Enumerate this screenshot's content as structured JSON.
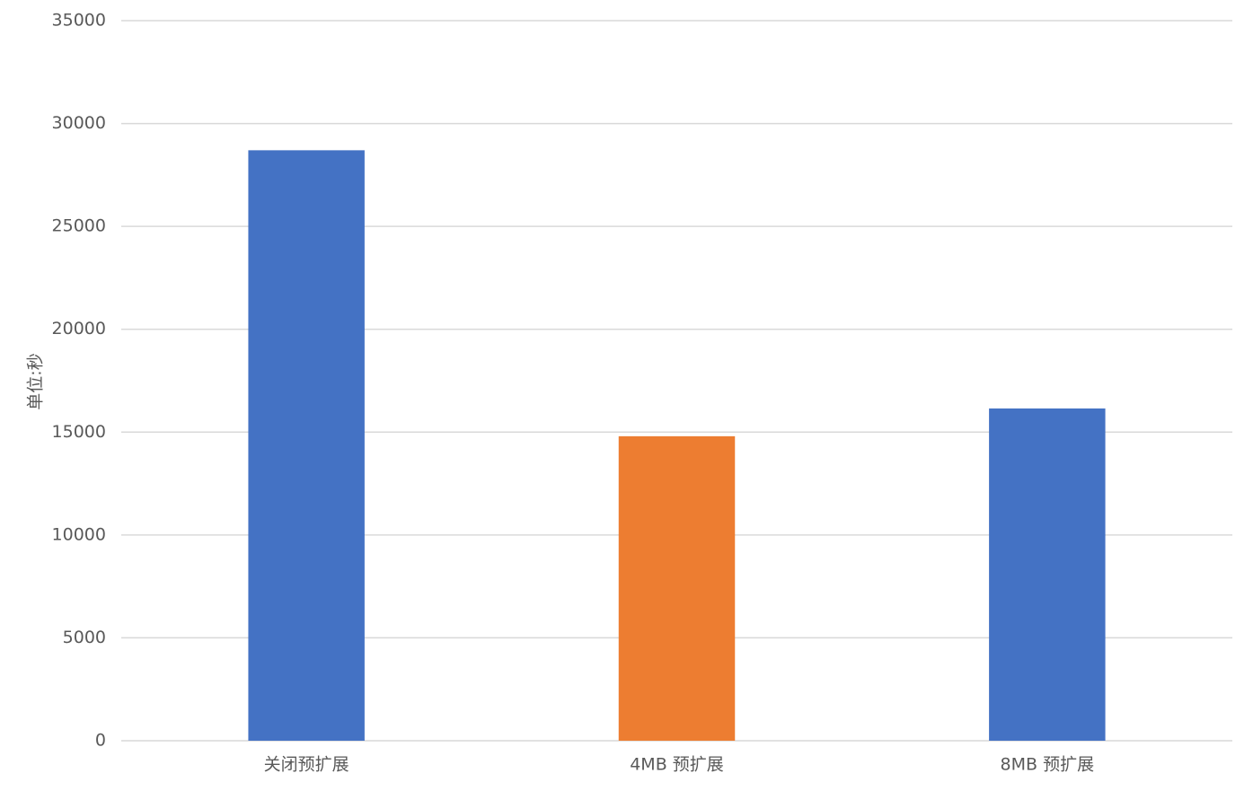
{
  "chart_data": {
    "type": "bar",
    "y_label": "单位:秒",
    "categories": [
      "关闭预扩展",
      "4MB 预扩展",
      "8MB 预扩展"
    ],
    "values": [
      28700,
      14800,
      16150
    ],
    "colors": [
      "#4472c4",
      "#ed7d31",
      "#4472c4"
    ],
    "ylim": [
      0,
      35000
    ],
    "yticks": [
      0,
      5000,
      10000,
      15000,
      20000,
      25000,
      30000,
      35000
    ],
    "grid": true
  }
}
